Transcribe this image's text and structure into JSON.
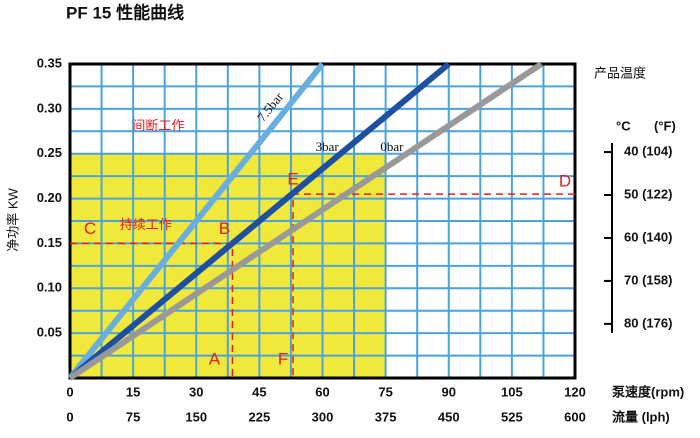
{
  "chart_data": {
    "type": "line",
    "title": "PF 15 性能曲线",
    "x_label": "泵速度(rpm)",
    "x2_label": "流量 (lph)",
    "y_label": "净功率 KW",
    "y2_header": "产品温度",
    "y2_unit_c": "°C",
    "y2_unit_f": "(°F)",
    "xlim": [
      0,
      120
    ],
    "xticks": [
      0,
      15,
      30,
      45,
      60,
      75,
      90,
      105,
      120
    ],
    "x2lim": [
      0,
      600
    ],
    "x2ticks": [
      0,
      75,
      150,
      225,
      300,
      375,
      450,
      525,
      600
    ],
    "ylim": [
      0,
      0.35
    ],
    "yticks": [
      0.05,
      {
        "value": 0.1,
        "label": "0.10"
      },
      0.15,
      {
        "value": 0.2,
        "label": "0.20"
      },
      0.25,
      {
        "value": 0.3,
        "label": "0.30"
      },
      0.35
    ],
    "y2lim": [
      92.6,
      19.5
    ],
    "y2ticks": [
      {
        "value": 40,
        "label": "40 (104)"
      },
      {
        "value": 50,
        "label": "50 (122)"
      },
      {
        "value": 60,
        "label": "60 (140)"
      },
      {
        "value": 70,
        "label": "70 (158)"
      },
      {
        "value": 80,
        "label": "80 (176)"
      }
    ],
    "x_gridlines": [
      7.5,
      15,
      22.5,
      30,
      37.5,
      45,
      52.5,
      60,
      67.5,
      75,
      82.5,
      90,
      97.5,
      105,
      112.5
    ],
    "y_gridlines": [
      0.025,
      0.05,
      0.075,
      0.1,
      0.125,
      0.15,
      0.175,
      0.2,
      0.225,
      0.25,
      0.275,
      0.3,
      0.325
    ],
    "grid_color": "#4aa3df",
    "continuous_region": {
      "label": "持续工作",
      "x": [
        0,
        75
      ],
      "y": [
        0,
        0.25
      ],
      "color": "#f0e83a"
    },
    "intermittent_label": "间断工作",
    "series": [
      {
        "name": "7.5bar",
        "color": "#6aaee0",
        "x": [
          0,
          60
        ],
        "values": [
          0,
          0.35
        ]
      },
      {
        "name": "3bar",
        "color": "#1e4fa0",
        "x": [
          0,
          90
        ],
        "values": [
          0,
          0.35
        ]
      },
      {
        "name": "0bar",
        "color": "#999999",
        "x": [
          0,
          112
        ],
        "values": [
          0,
          0.35
        ]
      }
    ],
    "guides": [
      {
        "x": [
          0,
          38.6,
          38.6
        ],
        "y": [
          0.15,
          0.15,
          0
        ]
      },
      {
        "x": [
          120,
          53,
          53
        ],
        "y": [
          0.205,
          0.205,
          0
        ]
      }
    ],
    "points": [
      {
        "label": "A",
        "x": 38.6,
        "y": 0
      },
      {
        "label": "B",
        "x": 38.6,
        "y": 0.15
      },
      {
        "label": "C",
        "x": 0,
        "y": 0.15
      },
      {
        "label": "D",
        "x": 120,
        "y": 0.205
      },
      {
        "label": "E",
        "x": 53,
        "y": 0.205
      },
      {
        "label": "F",
        "x": 53,
        "y": 0
      }
    ]
  }
}
